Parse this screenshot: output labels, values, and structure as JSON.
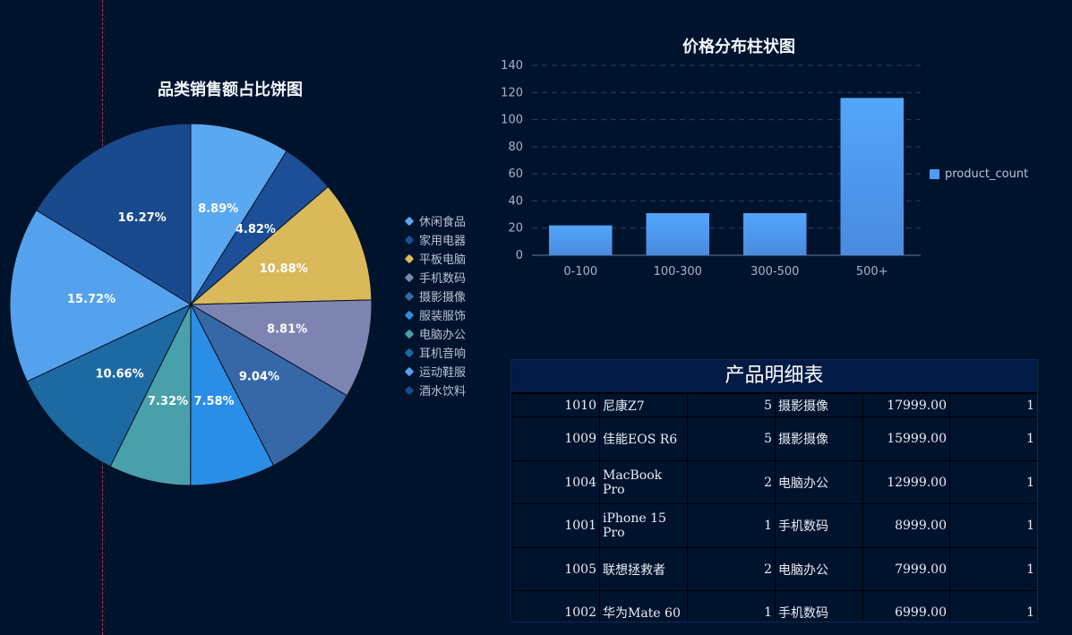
{
  "pie_chart": {
    "title": "品类销售额占比饼图"
  },
  "bar_chart": {
    "title": "价格分布柱状图",
    "legend_label": "product_count"
  },
  "table": {
    "title": "产品明细表",
    "rows": [
      [
        "1010",
        "尼康Z7",
        "5",
        "摄影摄像",
        "17999.00",
        "1"
      ],
      [
        "1009",
        "佳能EOS R6",
        "5",
        "摄影摄像",
        "15999.00",
        "1"
      ],
      [
        "1004",
        "MacBook Pro",
        "2",
        "电脑办公",
        "12999.00",
        "1"
      ],
      [
        "1001",
        "iPhone 15 Pro",
        "1",
        "手机数码",
        "8999.00",
        "1"
      ],
      [
        "1005",
        "联想拯救者",
        "2",
        "电脑办公",
        "7999.00",
        "1"
      ],
      [
        "1002",
        "华为Mate 60",
        "1",
        "手机数码",
        "6999.00",
        "1"
      ]
    ]
  },
  "colors": {
    "background": "#00132d",
    "bar": "#4a9ff5"
  },
  "chart_data": [
    {
      "type": "pie",
      "title": "品类销售额占比饼图",
      "slices": [
        {
          "label": "休闲食品",
          "value": 8.89,
          "pct_label": "8.89%",
          "color": "#5aa8f0"
        },
        {
          "label": "家用电器",
          "value": 4.82,
          "pct_label": "4.82%",
          "color": "#1c4f98"
        },
        {
          "label": "平板电脑",
          "value": 10.88,
          "pct_label": "10.88%",
          "color": "#d9b95a"
        },
        {
          "label": "手机数码",
          "value": 8.81,
          "pct_label": "8.81%",
          "color": "#7d84b2"
        },
        {
          "label": "摄影摄像",
          "value": 9.04,
          "pct_label": "9.04%",
          "color": "#3668a8"
        },
        {
          "label": "服装服饰",
          "value": 7.58,
          "pct_label": "7.58%",
          "color": "#2a8ee6"
        },
        {
          "label": "电脑办公",
          "value": 7.32,
          "pct_label": "7.32%",
          "color": "#4aa0aa"
        },
        {
          "label": "耳机音响",
          "value": 10.66,
          "pct_label": "10.66%",
          "color": "#1d6aa2"
        },
        {
          "label": "运动鞋服",
          "value": 15.72,
          "pct_label": "15.72%",
          "color": "#54a2ee"
        },
        {
          "label": "酒水饮料",
          "value": 16.27,
          "pct_label": "16.27%",
          "color": "#1a4a8e"
        }
      ],
      "legend_placement": "right"
    },
    {
      "type": "bar",
      "title": "价格分布柱状图",
      "categories": [
        "0-100",
        "100-300",
        "300-500",
        "500+"
      ],
      "series": [
        {
          "name": "product_count",
          "values": [
            22,
            31,
            31,
            116
          ]
        }
      ],
      "ylim": [
        0,
        140
      ],
      "yticks": [
        0,
        20,
        40,
        60,
        80,
        100,
        120,
        140
      ],
      "grid": true,
      "legend_placement": "right"
    }
  ]
}
